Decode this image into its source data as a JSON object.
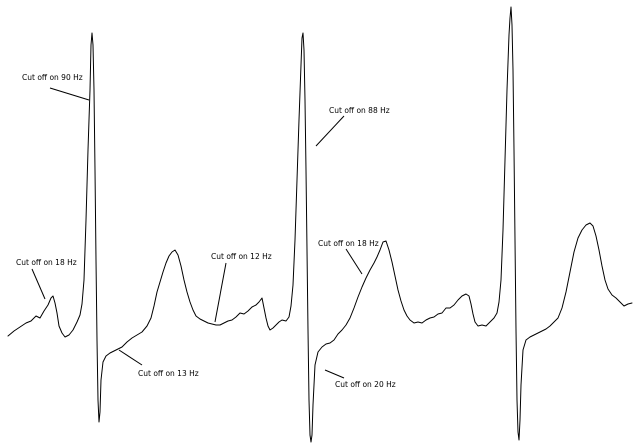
{
  "annotations": [
    {
      "id": "a1",
      "label": "Cut off on 90 Hz"
    },
    {
      "id": "a2",
      "label": "Cut off on 18 Hz"
    },
    {
      "id": "a3",
      "label": "Cut off on 13 Hz"
    },
    {
      "id": "a4",
      "label": "Cut off on 12 Hz"
    },
    {
      "id": "a5",
      "label": "Cut off on 88 Hz"
    },
    {
      "id": "a6",
      "label": "Cut off on 18 Hz"
    },
    {
      "id": "a7",
      "label": "Cut off on 20 Hz"
    }
  ],
  "colors": {
    "trace": "#000000",
    "background": "#ffffff"
  }
}
